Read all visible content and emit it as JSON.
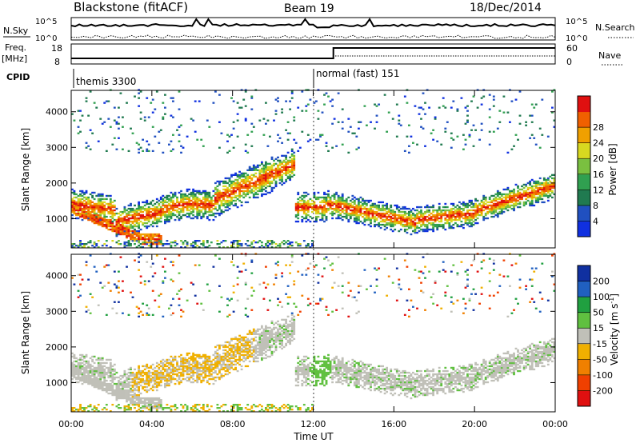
{
  "header": {
    "title": "Blackstone (fitACF)",
    "beam": "Beam 19",
    "date": "18/Dec/2014"
  },
  "panels": {
    "nsky_label": "N.Sky",
    "nsearch_label": "N.Search",
    "nsky_ticks": [
      "10^5",
      "10^0"
    ],
    "nsearch_ticks": [
      "10^5",
      "10^0"
    ],
    "freq_label": "Freq.",
    "freq_unit": "[MHz]",
    "freq_ticks": [
      "18",
      "8"
    ],
    "nave_label": "Nave",
    "nave_ticks": [
      "60",
      "0"
    ],
    "cpid_label": "CPID",
    "cpid_segments": [
      "themis 3300",
      "normal (fast) 151"
    ],
    "cpid_change_hour": 12.0,
    "freq_step_hour": 13.0
  },
  "chart_data": [
    {
      "type": "heatmap",
      "name": "power",
      "ylabel": "Slant Range [km]",
      "yticks": [
        1000,
        2000,
        3000,
        4000
      ],
      "ylim": [
        180,
        4600
      ],
      "xlim": [
        0,
        24
      ],
      "colorbar_label": "Power [dB]",
      "colorbar_ticks": [
        "4",
        "8",
        "12",
        "16",
        "20",
        "24",
        "28"
      ],
      "colors": [
        "#1030e0",
        "#2050c0",
        "#207a50",
        "#30a050",
        "#7ac040",
        "#d8d820",
        "#f0a000",
        "#f06000",
        "#e01010"
      ]
    },
    {
      "type": "heatmap",
      "name": "velocity",
      "ylabel": "Slant Range [km]",
      "yticks": [
        1000,
        2000,
        3000,
        4000
      ],
      "ylim": [
        180,
        4600
      ],
      "xlim": [
        0,
        24
      ],
      "xlabel": "Time UT",
      "xticks": [
        "00:00",
        "04:00",
        "08:00",
        "12:00",
        "16:00",
        "20:00",
        "00:00"
      ],
      "colorbar_label": "Velocity [m s",
      "colorbar_label_sup": "-1",
      "colorbar_label_end": "]",
      "colorbar_ticks": [
        "200",
        "100",
        "50",
        "15",
        "-15",
        "-50",
        "-100",
        "-200"
      ],
      "colors": [
        "#e01010",
        "#f04000",
        "#f08000",
        "#f0b000",
        "#c0c0b8",
        "#60c040",
        "#20a040",
        "#2060c0",
        "#1030a0"
      ]
    }
  ]
}
